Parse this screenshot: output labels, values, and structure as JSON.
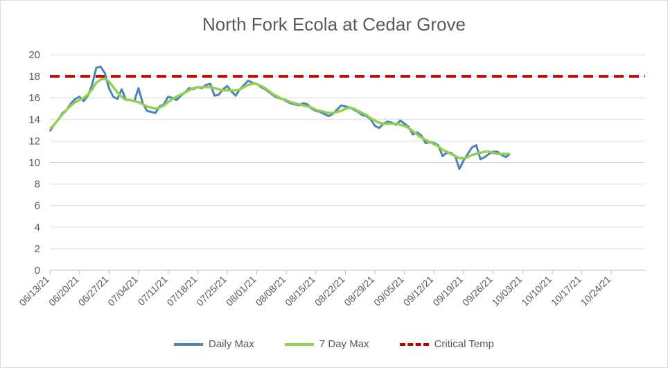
{
  "chart_data": {
    "type": "line",
    "title": "North Fork Ecola at Cedar Grove",
    "xlabel": "",
    "ylabel": "",
    "ylim": [
      0,
      20
    ],
    "yticks": [
      0,
      2,
      4,
      6,
      8,
      10,
      12,
      14,
      16,
      18,
      20
    ],
    "xticks": [
      "06/13/21",
      "06/20/21",
      "06/27/21",
      "07/04/21",
      "07/11/21",
      "07/18/21",
      "07/25/21",
      "08/01/21",
      "08/08/21",
      "08/15/21",
      "08/22/21",
      "08/29/21",
      "09/05/21",
      "09/12/21",
      "09/19/21",
      "09/26/21",
      "10/03/21",
      "10/10/21",
      "10/17/21",
      "10/24/21"
    ],
    "grid": "horizontal",
    "legend_position": "bottom",
    "series": [
      {
        "name": "Daily Max",
        "color": "#4f81bd",
        "values": [
          12.9,
          13.5,
          14.0,
          14.6,
          14.9,
          15.5,
          15.9,
          16.1,
          15.7,
          16.2,
          17.2,
          18.8,
          18.9,
          18.3,
          16.9,
          16.1,
          15.9,
          16.8,
          15.8,
          15.8,
          15.7,
          16.9,
          15.5,
          14.8,
          14.7,
          14.6,
          15.2,
          15.4,
          16.1,
          16.0,
          15.8,
          16.2,
          16.5,
          16.9,
          16.8,
          17.0,
          16.9,
          17.2,
          17.3,
          16.2,
          16.3,
          16.8,
          17.1,
          16.6,
          16.2,
          16.8,
          17.2,
          17.6,
          17.4,
          17.3,
          17.0,
          16.8,
          16.5,
          16.2,
          16.0,
          15.9,
          15.7,
          15.5,
          15.4,
          15.3,
          15.5,
          15.4,
          15.0,
          14.8,
          14.7,
          14.5,
          14.3,
          14.5,
          14.9,
          15.3,
          15.2,
          15.1,
          14.9,
          14.7,
          14.4,
          14.3,
          14.0,
          13.4,
          13.2,
          13.6,
          13.8,
          13.7,
          13.5,
          13.9,
          13.6,
          13.3,
          12.6,
          12.8,
          12.5,
          11.8,
          11.9,
          11.8,
          11.6,
          10.6,
          10.9,
          10.9,
          10.6,
          9.4,
          10.2,
          10.8,
          11.4,
          11.6,
          10.3,
          10.5,
          10.8,
          11.0,
          11.0,
          10.7,
          10.5,
          10.8
        ]
      },
      {
        "name": "7 Day Max",
        "color": "#92d050",
        "values": [
          13.1,
          13.5,
          14.0,
          14.5,
          14.9,
          15.3,
          15.6,
          15.8,
          16.0,
          16.3,
          16.8,
          17.4,
          17.7,
          17.8,
          17.5,
          17.0,
          16.5,
          16.1,
          15.8,
          15.8,
          15.7,
          15.6,
          15.4,
          15.2,
          15.1,
          15.0,
          15.1,
          15.3,
          15.6,
          15.9,
          16.1,
          16.3,
          16.5,
          16.7,
          16.9,
          17.0,
          17.0,
          17.0,
          17.0,
          16.9,
          16.8,
          16.7,
          16.7,
          16.7,
          16.7,
          16.8,
          17.0,
          17.2,
          17.3,
          17.3,
          17.1,
          16.9,
          16.6,
          16.3,
          16.1,
          15.9,
          15.8,
          15.6,
          15.5,
          15.4,
          15.3,
          15.2,
          15.1,
          14.9,
          14.8,
          14.7,
          14.6,
          14.6,
          14.7,
          14.8,
          15.0,
          15.1,
          15.0,
          14.8,
          14.6,
          14.4,
          14.1,
          13.9,
          13.7,
          13.6,
          13.6,
          13.6,
          13.6,
          13.5,
          13.4,
          13.2,
          12.9,
          12.6,
          12.3,
          12.1,
          11.9,
          11.7,
          11.5,
          11.2,
          11.0,
          10.8,
          10.6,
          10.4,
          10.4,
          10.5,
          10.7,
          10.8,
          10.9,
          11.0,
          11.0,
          10.9,
          10.8,
          10.8,
          10.8,
          10.8
        ]
      },
      {
        "name": "Critical Temp",
        "color": "#c00000",
        "values": [
          18,
          18
        ]
      }
    ]
  }
}
